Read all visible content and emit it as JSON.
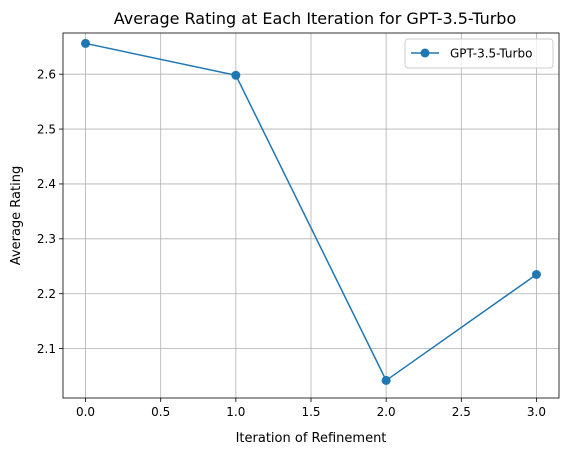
{
  "chart_data": {
    "type": "line",
    "title": "Average Rating at Each Iteration for GPT-3.5-Turbo",
    "xlabel": "Iteration of Refinement",
    "ylabel": "Average Rating",
    "xlim": [
      -0.15,
      3.15
    ],
    "ylim": [
      2.01,
      2.675
    ],
    "xticks": [
      0.0,
      0.5,
      1.0,
      1.5,
      2.0,
      2.5,
      3.0
    ],
    "xtick_labels": [
      "0.0",
      "0.5",
      "1.0",
      "1.5",
      "2.0",
      "2.5",
      "3.0"
    ],
    "yticks": [
      2.1,
      2.2,
      2.3,
      2.4,
      2.5,
      2.6
    ],
    "ytick_labels": [
      "2.1",
      "2.2",
      "2.3",
      "2.4",
      "2.5",
      "2.6"
    ],
    "grid": true,
    "legend": "top-right",
    "series": [
      {
        "name": "GPT-3.5-Turbo",
        "color": "#1f77b4",
        "marker": "circle",
        "x": [
          0,
          1,
          2,
          3
        ],
        "y": [
          2.656,
          2.598,
          2.042,
          2.235
        ]
      }
    ]
  }
}
